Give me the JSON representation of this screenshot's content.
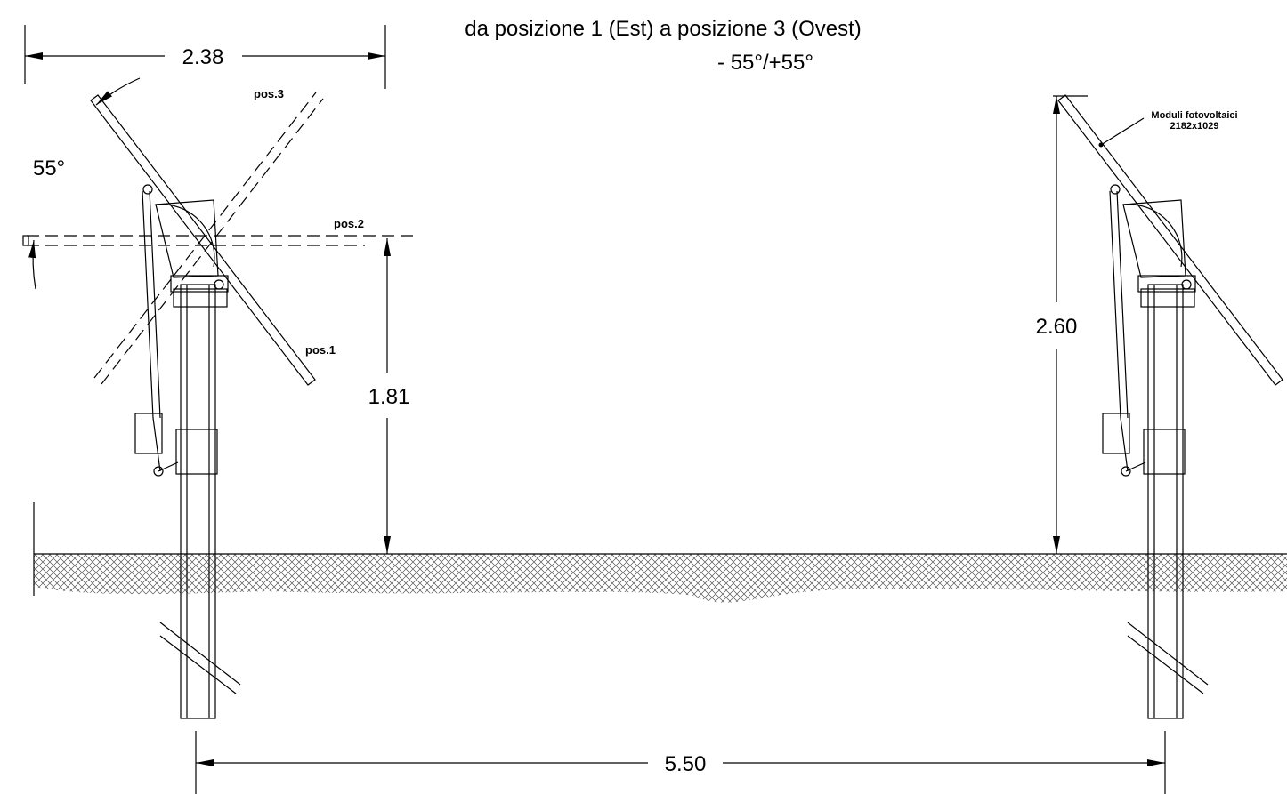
{
  "title": {
    "line1": "da posizione 1 (Est) a posizione 3 (Ovest)",
    "line2": "- 55°/+55°"
  },
  "dimensions": {
    "panel_width": "2.38",
    "axis_height": "1.81",
    "top_height": "2.60",
    "row_spacing": "5.50",
    "tilt_angle": "55°"
  },
  "positions": {
    "pos3": "pos.3",
    "pos2": "pos.2",
    "pos1": "pos.1"
  },
  "module_note": {
    "line1": "Moduli fotovoltaici",
    "line2": "2182x1029"
  }
}
